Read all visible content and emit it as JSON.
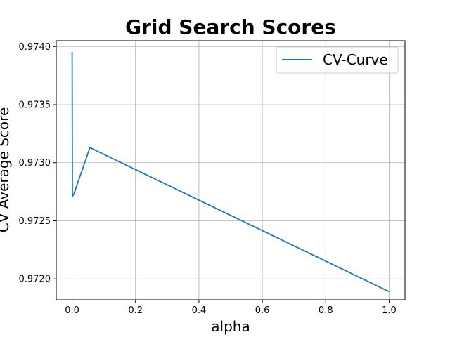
{
  "chart_data": {
    "type": "line",
    "title": "Grid Search Scores",
    "xlabel": "alpha",
    "ylabel": "CV Average Score",
    "xlim": [
      -0.05,
      1.05
    ],
    "ylim": [
      0.97182,
      0.97405
    ],
    "xticks": [
      0.0,
      0.2,
      0.4,
      0.6,
      0.8,
      1.0
    ],
    "xtick_labels": [
      "0.0",
      "0.2",
      "0.4",
      "0.6",
      "0.8",
      "1.0"
    ],
    "yticks": [
      0.972,
      0.9725,
      0.973,
      0.9735,
      0.974
    ],
    "ytick_labels": [
      "0.9720",
      "0.9725",
      "0.9730",
      "0.9735",
      "0.9740"
    ],
    "grid": true,
    "legend_position": "top-right",
    "series": [
      {
        "name": "CV-Curve",
        "color": "#1f77b4",
        "x": [
          0.0,
          0.0001,
          0.001,
          0.0056,
          0.056,
          1.0
        ],
        "y": [
          0.97394,
          0.97395,
          0.97271,
          0.97273,
          0.97313,
          0.97189
        ]
      }
    ]
  }
}
